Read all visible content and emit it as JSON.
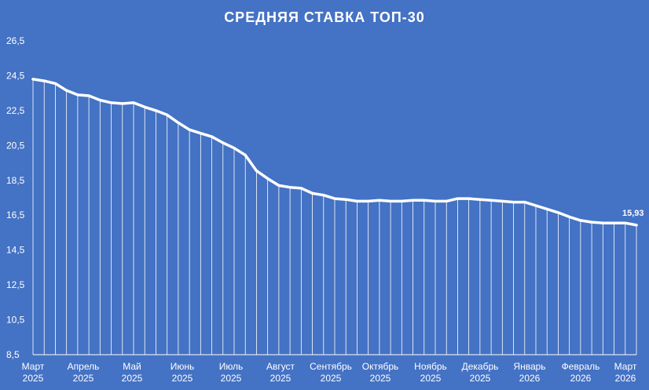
{
  "chart_data": {
    "type": "area",
    "title": "СРЕДНЯЯ СТАВКА ТОП-30",
    "xlabel": "",
    "ylabel": "",
    "ylim": [
      8.5,
      26.5
    ],
    "yticks": [
      "8,5",
      "10,5",
      "12,5",
      "14,5",
      "16,5",
      "18,5",
      "20,5",
      "22,5",
      "24,5",
      "26,5"
    ],
    "ytick_values": [
      8.5,
      10.5,
      12.5,
      14.5,
      16.5,
      18.5,
      20.5,
      22.5,
      24.5,
      26.5
    ],
    "month_labels": [
      {
        "month": "Март",
        "year": "2025"
      },
      {
        "month": "Апрель",
        "year": "2025"
      },
      {
        "month": "Май",
        "year": "2025"
      },
      {
        "month": "Июнь",
        "year": "2025"
      },
      {
        "month": "Июль",
        "year": "2025"
      },
      {
        "month": "Август",
        "year": "2025"
      },
      {
        "month": "Сентябрь",
        "year": "2025"
      },
      {
        "month": "Октябрь",
        "year": "2025"
      },
      {
        "month": "Ноябрь",
        "year": "2025"
      },
      {
        "month": "Декабрь",
        "year": "2025"
      },
      {
        "month": "Январь",
        "year": "2026"
      },
      {
        "month": "Февраль",
        "year": "2026"
      },
      {
        "month": "Март",
        "year": "2026"
      }
    ],
    "values": [
      24.3,
      24.2,
      24.05,
      23.65,
      23.4,
      23.35,
      23.1,
      22.95,
      22.9,
      22.95,
      22.7,
      22.5,
      22.25,
      21.8,
      21.4,
      21.2,
      21.0,
      20.65,
      20.35,
      19.95,
      19.05,
      18.6,
      18.2,
      18.1,
      18.05,
      17.75,
      17.65,
      17.45,
      17.4,
      17.3,
      17.3,
      17.35,
      17.3,
      17.3,
      17.35,
      17.35,
      17.3,
      17.3,
      17.45,
      17.45,
      17.4,
      17.35,
      17.3,
      17.25,
      17.25,
      17.05,
      16.85,
      16.65,
      16.4,
      16.2,
      16.1,
      16.05,
      16.05,
      16.05,
      15.93
    ],
    "end_value_label": "15,93",
    "line_color": "#FFFFFF",
    "background_color": "#4472C4",
    "drop_line_color": "#FFFFFF",
    "grid": false,
    "legend": "none"
  }
}
